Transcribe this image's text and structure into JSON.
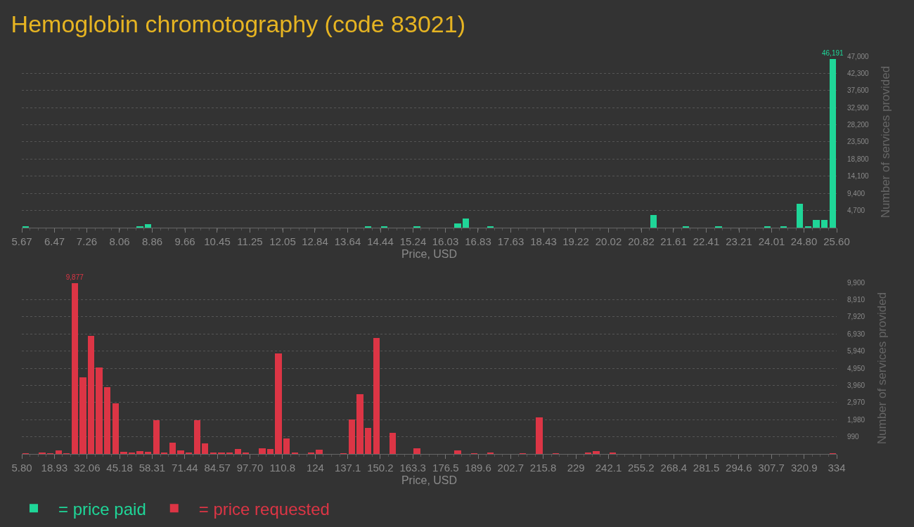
{
  "chart_data": [
    {
      "type": "histogram",
      "title": "Hemoglobin chromotography (code 83021)",
      "xlabel": "Price, USD",
      "ylabel": "Number of services provided",
      "bins": [
        5.67,
        5.8693,
        6.0686,
        6.2679,
        6.4672,
        6.6665,
        6.8658,
        7.0651,
        7.2644,
        7.4637,
        7.663,
        7.8623,
        8.0616,
        8.2609,
        8.4602,
        8.6595,
        8.8588,
        9.0581,
        9.2574,
        9.4567,
        9.656,
        9.8553,
        10.0546,
        10.2539,
        10.4532,
        10.6525,
        10.8518,
        11.0511,
        11.2504,
        11.4497,
        11.649,
        11.8483,
        12.0476,
        12.2469,
        12.4462,
        12.6455,
        12.8448,
        13.0441,
        13.2434,
        13.4427,
        13.642,
        13.8413,
        14.0406,
        14.2399,
        14.4392,
        14.6385,
        14.8378,
        15.0371,
        15.2364,
        15.4357,
        15.635,
        15.8343,
        16.0336,
        16.2329,
        16.4322,
        16.6315,
        16.8308,
        17.0301,
        17.2294,
        17.4287,
        17.628,
        17.8273,
        18.0266,
        18.2259,
        18.4252,
        18.6245,
        18.8238,
        19.0231,
        19.2224,
        19.4217,
        19.621,
        19.8203,
        20.0196,
        20.2189,
        20.4182,
        20.6175,
        20.8168,
        21.0161,
        21.2154,
        21.4147,
        21.614,
        21.8133,
        22.0126,
        22.2119,
        22.4112,
        22.6105,
        22.8098,
        23.0091,
        23.2084,
        23.4077,
        23.607,
        23.8063,
        24.0056,
        24.2049,
        24.4042,
        24.6035,
        24.8028,
        25.0021,
        25.2014,
        25.4007,
        25.6
      ],
      "series": [
        {
          "name": "= price paid",
          "color": "#1fd698",
          "values": [
            200,
            0,
            0,
            0,
            0,
            0,
            0,
            0,
            0,
            0,
            0,
            0,
            0,
            0,
            200,
            900,
            0,
            0,
            0,
            0,
            0,
            0,
            0,
            0,
            0,
            0,
            0,
            0,
            0,
            0,
            0,
            0,
            0,
            0,
            0,
            0,
            0,
            0,
            0,
            0,
            0,
            0,
            200,
            0,
            200,
            0,
            0,
            0,
            200,
            0,
            0,
            0,
            0,
            1100,
            2500,
            0,
            0,
            200,
            0,
            0,
            0,
            0,
            0,
            0,
            0,
            0,
            0,
            0,
            0,
            0,
            0,
            0,
            0,
            0,
            0,
            0,
            0,
            3500,
            0,
            0,
            0,
            200,
            0,
            0,
            0,
            200,
            0,
            0,
            0,
            0,
            0,
            200,
            0,
            200,
            0,
            6500,
            200,
            2200,
            2200,
            46191
          ],
          "value_labels": [
            null,
            null,
            null,
            null,
            null,
            null,
            null,
            null,
            null,
            null,
            null,
            null,
            null,
            null,
            null,
            null,
            null,
            null,
            null,
            null,
            null,
            null,
            null,
            null,
            null,
            null,
            null,
            null,
            null,
            null,
            null,
            null,
            null,
            null,
            null,
            null,
            null,
            null,
            null,
            null,
            null,
            null,
            null,
            null,
            null,
            null,
            null,
            null,
            null,
            null,
            null,
            null,
            null,
            null,
            null,
            null,
            null,
            null,
            null,
            null,
            null,
            null,
            null,
            null,
            null,
            null,
            null,
            null,
            null,
            null,
            null,
            null,
            null,
            null,
            null,
            null,
            null,
            null,
            null,
            null,
            null,
            null,
            null,
            null,
            null,
            null,
            null,
            null,
            null,
            null,
            null,
            null,
            null,
            null,
            null,
            null,
            null,
            null,
            null,
            "46,191"
          ]
        }
      ],
      "xlim": [
        5.67,
        25.6
      ],
      "xticks": [
        5.67,
        6.47,
        7.26,
        8.06,
        8.86,
        9.66,
        10.45,
        11.25,
        12.05,
        12.84,
        13.64,
        14.44,
        15.24,
        16.03,
        16.83,
        17.63,
        18.43,
        19.22,
        20.02,
        20.82,
        21.61,
        22.41,
        23.21,
        24.01,
        {
          "value": 24.8,
          "label": "24.80"
        },
        {
          "value": 25.6,
          "label": "25.60"
        }
      ],
      "ylim": [
        0,
        47000
      ],
      "yticks": [
        {
          "value": 4700,
          "label": "4,700"
        },
        {
          "value": 9400,
          "label": "9,400"
        },
        {
          "value": 14100,
          "label": "14,100"
        },
        {
          "value": 18800,
          "label": "18,800"
        },
        {
          "value": 23500,
          "label": "23,500"
        },
        {
          "value": 28200,
          "label": "28,200"
        },
        {
          "value": 32900,
          "label": "32,900"
        },
        {
          "value": 37600,
          "label": "37,600"
        },
        {
          "value": 42300,
          "label": "42,300"
        },
        {
          "value": 47000,
          "label": "47,000"
        }
      ],
      "grid": "y",
      "legend": "bottom left"
    },
    {
      "type": "histogram",
      "xlabel": "Price, USD",
      "ylabel": "Number of services provided",
      "bins": [
        5.8,
        9.082,
        12.364,
        15.646,
        18.928,
        22.21,
        25.492,
        28.774,
        32.056,
        35.338,
        38.62,
        41.902,
        45.184,
        48.466,
        51.748,
        55.03,
        58.312,
        61.594,
        64.876,
        68.158,
        71.44,
        74.722,
        78.004,
        81.286,
        84.568,
        87.85,
        91.132,
        94.414,
        97.696,
        100.978,
        104.26,
        107.542,
        110.824,
        114.106,
        117.388,
        120.67,
        123.952,
        127.234,
        130.516,
        133.798,
        137.08,
        140.362,
        143.644,
        146.926,
        150.208,
        153.49,
        156.772,
        160.054,
        163.336,
        166.618,
        169.9,
        173.182,
        176.464,
        179.746,
        183.028,
        186.31,
        189.592,
        192.874,
        196.156,
        199.438,
        202.72,
        206.002,
        209.284,
        212.566,
        215.848,
        219.13,
        222.412,
        225.694,
        228.976,
        232.258,
        235.54,
        238.822,
        242.104,
        245.386,
        248.668,
        251.95,
        255.232,
        258.514,
        261.796,
        265.078,
        268.36,
        271.642,
        274.924,
        278.206,
        281.488,
        284.77,
        288.052,
        291.334,
        294.616,
        297.898,
        301.18,
        304.462,
        307.744,
        311.026,
        314.308,
        317.59,
        320.872,
        324.154,
        327.436,
        330.718,
        334
      ],
      "series": [
        {
          "name": "= price requested",
          "color": "#dc3545",
          "values": [
            30,
            0,
            70,
            30,
            190,
            30,
            9877,
            4410,
            6820,
            5000,
            3850,
            2940,
            110,
            50,
            150,
            110,
            1930,
            50,
            660,
            190,
            70,
            1930,
            620,
            70,
            70,
            70,
            290,
            70,
            0,
            330,
            290,
            5800,
            880,
            90,
            0,
            70,
            250,
            0,
            0,
            30,
            1970,
            3460,
            1520,
            6710,
            0,
            1200,
            0,
            0,
            330,
            0,
            0,
            0,
            0,
            210,
            0,
            30,
            0,
            70,
            0,
            0,
            0,
            30,
            0,
            2110,
            0,
            30,
            0,
            0,
            0,
            70,
            150,
            0,
            70,
            0,
            0,
            0,
            0,
            0,
            0,
            0,
            0,
            0,
            0,
            0,
            0,
            0,
            0,
            0,
            0,
            0,
            0,
            0,
            0,
            0,
            0,
            0,
            0,
            0,
            0,
            30
          ],
          "value_labels": [
            null,
            null,
            null,
            null,
            null,
            null,
            "9,877",
            null,
            null,
            null,
            null,
            null,
            null,
            null,
            null,
            null,
            null,
            null,
            null,
            null,
            null,
            null,
            null,
            null,
            null,
            null,
            null,
            null,
            null,
            null,
            null,
            null,
            null,
            null,
            null,
            null,
            null,
            null,
            null,
            null,
            null,
            null,
            null,
            null,
            null,
            null,
            null,
            null,
            null,
            null,
            null,
            null,
            null,
            null,
            null,
            null,
            null,
            null,
            null,
            null,
            null,
            null,
            null,
            null,
            null,
            null,
            null,
            null,
            null,
            null,
            null,
            null,
            null,
            null,
            null,
            null,
            null,
            null,
            null,
            null,
            null,
            null,
            null,
            null,
            null,
            null,
            null,
            null,
            null,
            null,
            null,
            null,
            null,
            null,
            null,
            null,
            null,
            null,
            null,
            null
          ]
        }
      ],
      "xlim": [
        5.8,
        334
      ],
      "xticks": [
        {
          "value": 5.8,
          "label": "5.80"
        },
        18.93,
        32.06,
        45.18,
        58.31,
        71.44,
        84.57,
        {
          "value": 97.7,
          "label": "97.70"
        },
        110.8,
        124,
        137.1,
        150.2,
        163.3,
        176.5,
        189.6,
        202.7,
        215.8,
        229,
        242.1,
        255.2,
        268.4,
        281.5,
        294.6,
        307.7,
        320.9,
        334
      ],
      "ylim": [
        0,
        9900
      ],
      "yticks": [
        990,
        {
          "value": 1980,
          "label": "1,980"
        },
        {
          "value": 2970,
          "label": "2,970"
        },
        {
          "value": 3960,
          "label": "3,960"
        },
        {
          "value": 4950,
          "label": "4,950"
        },
        {
          "value": 5940,
          "label": "5,940"
        },
        {
          "value": 6930,
          "label": "6,930"
        },
        {
          "value": 7920,
          "label": "7,920"
        },
        {
          "value": 8910,
          "label": "8,910"
        },
        {
          "value": 9900,
          "label": "9,900"
        }
      ],
      "grid": "y",
      "legend": "bottom left"
    }
  ]
}
